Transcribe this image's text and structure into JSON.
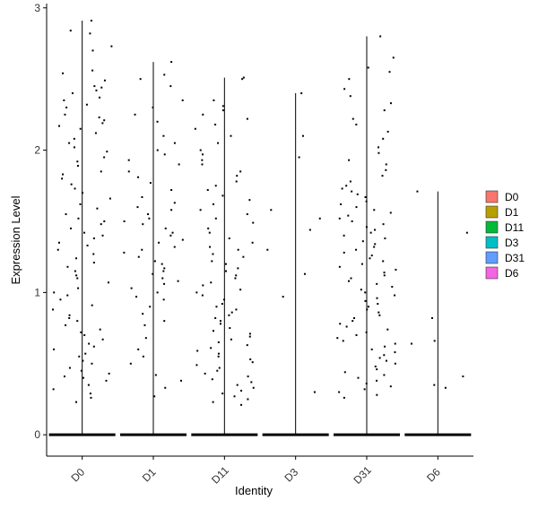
{
  "chart_data": {
    "type": "scatter",
    "subtype": "violin-jitter",
    "title": "",
    "xlabel": "Identity",
    "ylabel": "Expression Level",
    "ylim": [
      -0.15,
      3.03
    ],
    "yticks": [
      0,
      1,
      2,
      3
    ],
    "grid": false,
    "legend": {
      "placement": "right",
      "entries": [
        {
          "name": "D0",
          "color": "#F8766D"
        },
        {
          "name": "D1",
          "color": "#B79F00"
        },
        {
          "name": "D11",
          "color": "#00BA38"
        },
        {
          "name": "D3",
          "color": "#00BFC4"
        },
        {
          "name": "D31",
          "color": "#619CFF"
        },
        {
          "name": "D6",
          "color": "#F564E3"
        }
      ]
    },
    "categories": [
      "D0",
      "D1",
      "D11",
      "D3",
      "D31",
      "D6"
    ],
    "series": [
      {
        "category": "D0",
        "max": 2.91,
        "points": [
          2.91,
          2.84,
          2.82,
          2.73,
          2.7,
          2.56,
          2.54,
          2.49,
          2.45,
          2.44,
          2.42,
          2.4,
          2.37,
          2.35,
          2.32,
          2.3,
          2.25,
          2.23,
          2.21,
          2.19,
          2.17,
          2.15,
          2.12,
          2.08,
          2.05,
          2.02,
          1.99,
          1.95,
          1.92,
          1.89,
          1.85,
          1.83,
          1.8,
          1.76,
          1.73,
          1.7,
          1.66,
          1.62,
          1.59,
          1.55,
          1.52,
          1.5,
          1.48,
          1.45,
          1.42,
          1.4,
          1.38,
          1.35,
          1.33,
          1.3,
          1.27,
          1.24,
          1.21,
          1.18,
          1.15,
          1.12,
          1.1,
          1.07,
          1.03,
          1.0,
          0.98,
          0.95,
          0.91,
          0.88,
          0.84,
          0.82,
          0.8,
          0.77,
          0.74,
          0.72,
          0.7,
          0.67,
          0.64,
          0.62,
          0.6,
          0.57,
          0.55,
          0.52,
          0.5,
          0.47,
          0.45,
          0.43,
          0.41,
          0.4,
          0.38,
          0.35,
          0.32,
          0.29,
          0.26,
          0.23
        ]
      },
      {
        "category": "D1",
        "max": 2.62,
        "points": [
          2.62,
          2.53,
          2.5,
          2.45,
          2.35,
          2.3,
          2.25,
          2.2,
          2.1,
          2.05,
          2.0,
          1.97,
          1.93,
          1.9,
          1.85,
          1.81,
          1.77,
          1.72,
          1.67,
          1.63,
          1.6,
          1.58,
          1.55,
          1.52,
          1.5,
          1.48,
          1.45,
          1.42,
          1.4,
          1.37,
          1.35,
          1.32,
          1.3,
          1.28,
          1.25,
          1.22,
          1.2,
          1.17,
          1.15,
          1.13,
          1.1,
          1.08,
          1.06,
          1.03,
          1.0,
          0.97,
          0.95,
          0.9,
          0.85,
          0.8,
          0.77,
          0.68,
          0.6,
          0.55,
          0.5,
          0.42,
          0.38,
          0.33,
          0.27
        ]
      },
      {
        "category": "D11",
        "max": 2.51,
        "points": [
          2.51,
          2.5,
          2.35,
          2.31,
          2.28,
          2.25,
          2.22,
          2.18,
          2.15,
          2.1,
          2.05,
          2.0,
          1.97,
          1.93,
          1.9,
          1.85,
          1.82,
          1.78,
          1.75,
          1.72,
          1.68,
          1.65,
          1.62,
          1.58,
          1.55,
          1.52,
          1.49,
          1.45,
          1.42,
          1.38,
          1.35,
          1.32,
          1.3,
          1.27,
          1.25,
          1.22,
          1.2,
          1.17,
          1.15,
          1.12,
          1.1,
          1.07,
          1.05,
          1.02,
          1.0,
          0.98,
          0.95,
          0.92,
          0.9,
          0.88,
          0.86,
          0.84,
          0.82,
          0.8,
          0.78,
          0.75,
          0.73,
          0.71,
          0.69,
          0.67,
          0.65,
          0.63,
          0.61,
          0.59,
          0.57,
          0.55,
          0.53,
          0.51,
          0.49,
          0.47,
          0.45,
          0.43,
          0.41,
          0.39,
          0.37,
          0.35,
          0.33,
          0.31,
          0.29,
          0.27,
          0.25,
          0.23,
          0.21
        ]
      },
      {
        "category": "D3",
        "max": 2.4,
        "points": [
          2.4,
          2.1,
          1.95,
          1.58,
          1.52,
          1.44,
          1.3,
          1.13,
          0.97,
          0.3
        ]
      },
      {
        "category": "D31",
        "max": 2.8,
        "points": [
          2.8,
          2.65,
          2.58,
          2.55,
          2.5,
          2.43,
          2.38,
          2.33,
          2.28,
          2.22,
          2.18,
          2.13,
          2.08,
          2.02,
          1.98,
          1.93,
          1.9,
          1.86,
          1.82,
          1.78,
          1.75,
          1.73,
          1.71,
          1.69,
          1.67,
          1.64,
          1.62,
          1.6,
          1.58,
          1.56,
          1.54,
          1.52,
          1.5,
          1.48,
          1.46,
          1.44,
          1.42,
          1.4,
          1.38,
          1.36,
          1.34,
          1.32,
          1.3,
          1.28,
          1.26,
          1.24,
          1.22,
          1.2,
          1.18,
          1.16,
          1.14,
          1.12,
          1.1,
          1.08,
          1.06,
          1.04,
          1.02,
          1.0,
          0.98,
          0.96,
          0.94,
          0.92,
          0.9,
          0.88,
          0.86,
          0.84,
          0.82,
          0.8,
          0.78,
          0.76,
          0.74,
          0.72,
          0.7,
          0.68,
          0.66,
          0.64,
          0.62,
          0.6,
          0.58,
          0.56,
          0.54,
          0.52,
          0.5,
          0.48,
          0.46,
          0.44,
          0.42,
          0.4,
          0.38,
          0.36,
          0.34,
          0.32,
          0.3,
          0.28,
          0.26
        ]
      },
      {
        "category": "D6",
        "max": 1.71,
        "points": [
          1.71,
          1.42,
          0.82,
          0.66,
          0.64,
          0.41,
          0.35,
          0.33
        ]
      }
    ]
  }
}
